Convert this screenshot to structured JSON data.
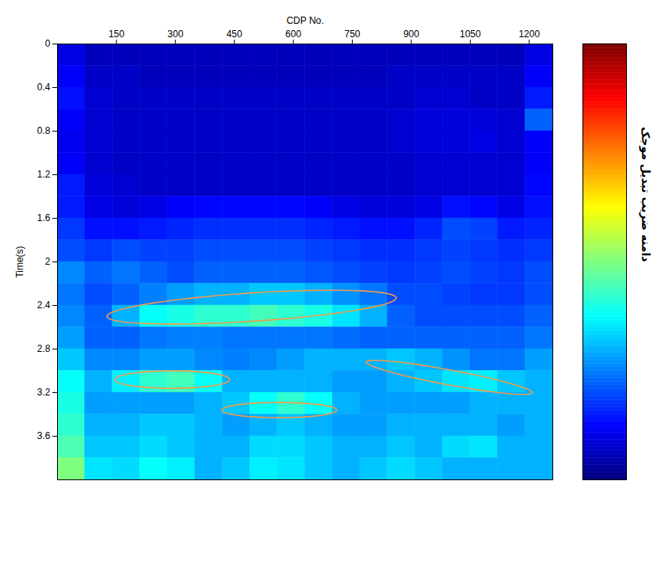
{
  "chart_data": {
    "type": "heatmap",
    "xlabel": "CDP No.",
    "ylabel": "Time(s)",
    "xlim": [
      0,
      1260
    ],
    "xticks": [
      150,
      300,
      450,
      600,
      750,
      900,
      1050,
      1200
    ],
    "ylim": [
      0,
      4
    ],
    "yticks": [
      0,
      0.4,
      0.8,
      1.2,
      1.6,
      2,
      2.4,
      2.8,
      3.2,
      3.6
    ],
    "x_edges": [
      0,
      70,
      140,
      210,
      280,
      350,
      420,
      490,
      560,
      630,
      700,
      770,
      840,
      910,
      980,
      1050,
      1120,
      1190,
      1260
    ],
    "y_edges": [
      0,
      0.2,
      0.4,
      0.6,
      0.8,
      1,
      1.2,
      1.4,
      1.6,
      1.8,
      2,
      2.2,
      2.4,
      2.6,
      2.8,
      3,
      3.2,
      3.4,
      3.6,
      3.8,
      4
    ],
    "cells": [
      [
        0.1,
        0.06,
        0.06,
        0.06,
        0.06,
        0.06,
        0.06,
        0.06,
        0.06,
        0.06,
        0.06,
        0.06,
        0.06,
        0.06,
        0.06,
        0.06,
        0.06,
        0.1
      ],
      [
        0.12,
        0.07,
        0.07,
        0.06,
        0.06,
        0.06,
        0.06,
        0.06,
        0.06,
        0.06,
        0.06,
        0.06,
        0.07,
        0.07,
        0.07,
        0.07,
        0.07,
        0.12
      ],
      [
        0.14,
        0.08,
        0.07,
        0.07,
        0.07,
        0.07,
        0.07,
        0.07,
        0.07,
        0.07,
        0.07,
        0.07,
        0.07,
        0.08,
        0.08,
        0.07,
        0.07,
        0.15
      ],
      [
        0.12,
        0.08,
        0.07,
        0.07,
        0.07,
        0.07,
        0.07,
        0.07,
        0.07,
        0.07,
        0.07,
        0.07,
        0.08,
        0.09,
        0.09,
        0.09,
        0.08,
        0.22
      ],
      [
        0.11,
        0.08,
        0.07,
        0.07,
        0.07,
        0.07,
        0.07,
        0.07,
        0.07,
        0.07,
        0.07,
        0.07,
        0.08,
        0.09,
        0.09,
        0.1,
        0.08,
        0.12
      ],
      [
        0.12,
        0.08,
        0.07,
        0.07,
        0.07,
        0.07,
        0.07,
        0.07,
        0.07,
        0.07,
        0.07,
        0.07,
        0.07,
        0.08,
        0.08,
        0.08,
        0.08,
        0.12
      ],
      [
        0.15,
        0.09,
        0.08,
        0.07,
        0.07,
        0.07,
        0.07,
        0.07,
        0.07,
        0.07,
        0.07,
        0.07,
        0.07,
        0.08,
        0.08,
        0.08,
        0.08,
        0.13
      ],
      [
        0.15,
        0.1,
        0.09,
        0.1,
        0.12,
        0.13,
        0.13,
        0.13,
        0.13,
        0.12,
        0.1,
        0.09,
        0.09,
        0.1,
        0.14,
        0.13,
        0.1,
        0.14
      ],
      [
        0.18,
        0.14,
        0.14,
        0.15,
        0.16,
        0.17,
        0.17,
        0.17,
        0.17,
        0.16,
        0.15,
        0.14,
        0.14,
        0.16,
        0.2,
        0.19,
        0.15,
        0.16
      ],
      [
        0.2,
        0.18,
        0.2,
        0.19,
        0.19,
        0.2,
        0.2,
        0.2,
        0.2,
        0.19,
        0.18,
        0.17,
        0.17,
        0.18,
        0.19,
        0.18,
        0.17,
        0.18
      ],
      [
        0.26,
        0.22,
        0.24,
        0.22,
        0.2,
        0.22,
        0.22,
        0.22,
        0.22,
        0.21,
        0.2,
        0.19,
        0.18,
        0.19,
        0.2,
        0.19,
        0.18,
        0.2
      ],
      [
        0.24,
        0.2,
        0.22,
        0.25,
        0.28,
        0.3,
        0.3,
        0.32,
        0.32,
        0.3,
        0.27,
        0.24,
        0.2,
        0.2,
        0.19,
        0.18,
        0.18,
        0.2
      ],
      [
        0.26,
        0.22,
        0.3,
        0.38,
        0.4,
        0.42,
        0.42,
        0.44,
        0.42,
        0.4,
        0.35,
        0.3,
        0.22,
        0.2,
        0.2,
        0.2,
        0.2,
        0.22
      ],
      [
        0.28,
        0.22,
        0.22,
        0.24,
        0.25,
        0.25,
        0.24,
        0.24,
        0.24,
        0.24,
        0.23,
        0.22,
        0.22,
        0.22,
        0.22,
        0.22,
        0.22,
        0.24
      ],
      [
        0.32,
        0.26,
        0.26,
        0.28,
        0.28,
        0.26,
        0.25,
        0.26,
        0.28,
        0.3,
        0.3,
        0.3,
        0.32,
        0.3,
        0.27,
        0.24,
        0.24,
        0.28
      ],
      [
        0.38,
        0.3,
        0.36,
        0.42,
        0.44,
        0.38,
        0.3,
        0.3,
        0.3,
        0.3,
        0.28,
        0.28,
        0.3,
        0.32,
        0.35,
        0.36,
        0.32,
        0.3
      ],
      [
        0.4,
        0.28,
        0.28,
        0.28,
        0.28,
        0.3,
        0.32,
        0.38,
        0.42,
        0.38,
        0.3,
        0.28,
        0.28,
        0.28,
        0.28,
        0.3,
        0.3,
        0.3
      ],
      [
        0.42,
        0.3,
        0.3,
        0.32,
        0.32,
        0.3,
        0.28,
        0.3,
        0.32,
        0.3,
        0.28,
        0.28,
        0.3,
        0.3,
        0.3,
        0.3,
        0.28,
        0.3
      ],
      [
        0.45,
        0.32,
        0.32,
        0.34,
        0.32,
        0.3,
        0.3,
        0.34,
        0.34,
        0.32,
        0.3,
        0.3,
        0.32,
        0.3,
        0.34,
        0.35,
        0.3,
        0.3
      ],
      [
        0.5,
        0.35,
        0.34,
        0.38,
        0.36,
        0.3,
        0.32,
        0.36,
        0.35,
        0.32,
        0.3,
        0.32,
        0.34,
        0.32,
        0.3,
        0.3,
        0.3,
        0.3
      ]
    ],
    "colorbar": {
      "label": "دامنه ضریب تبدیل موجک",
      "range": [
        0,
        1
      ]
    },
    "highlights": [
      {
        "x": [
          126,
          862
        ],
        "y": [
          2.5,
          2.33
        ],
        "height": 0.13
      },
      {
        "x": [
          146,
          438
        ],
        "y": [
          3.08,
          3.08
        ],
        "height": 0.08
      },
      {
        "x": [
          418,
          710
        ],
        "y": [
          3.36,
          3.36
        ],
        "height": 0.07
      },
      {
        "x": [
          785,
          1208
        ],
        "y": [
          2.92,
          3.2
        ],
        "height": 0.07
      }
    ],
    "tick_labels": true
  }
}
